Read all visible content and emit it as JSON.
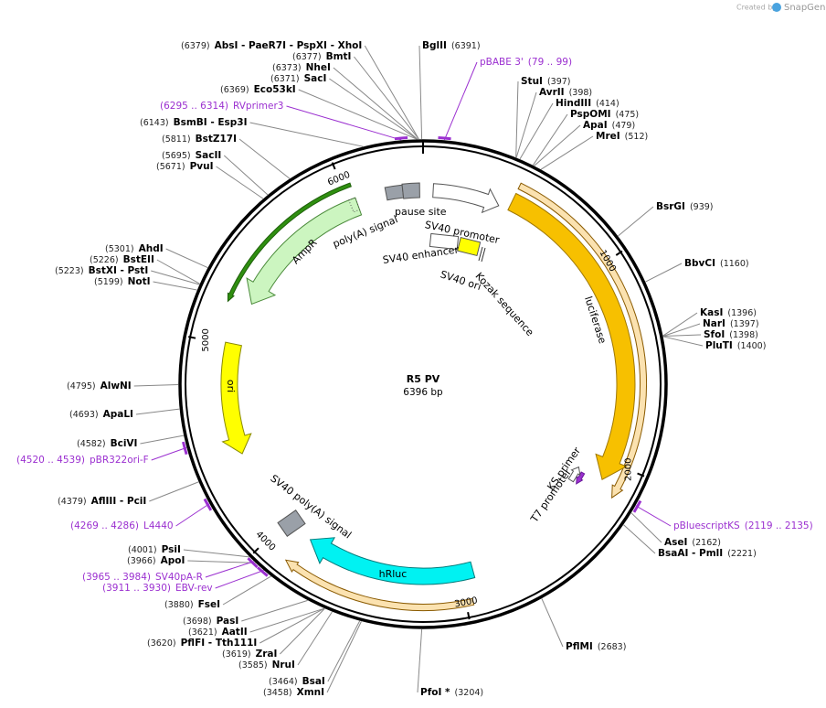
{
  "header": {
    "created_by": "Created by",
    "brand": "SnapGene"
  },
  "plasmid": {
    "name": "R5 PV",
    "size": "6396 bp",
    "ticks": [
      1000,
      2000,
      3000,
      4000,
      5000,
      6000
    ]
  },
  "enzymes": [
    {
      "position": "(6379)",
      "label": "AbsI  - PaeR7I  - PspXI  - XhoI"
    },
    {
      "position": "(6377)",
      "label": "BmtI"
    },
    {
      "position": "(6373)",
      "label": "NheI"
    },
    {
      "position": "(6371)",
      "label": "SacI"
    },
    {
      "position": "(6369)",
      "label": "Eco53kI"
    },
    {
      "position": "(6143)",
      "label": "BsmBI  - Esp3I"
    },
    {
      "position": "(5811)",
      "label": "BstZ17I"
    },
    {
      "position": "(5695)",
      "label": "SacII"
    },
    {
      "position": "(5671)",
      "label": "PvuI"
    },
    {
      "position": "(5301)",
      "label": "AhdI"
    },
    {
      "position": "(5226)",
      "label": "BstEII"
    },
    {
      "position": "(5223)",
      "label": "BstXI  - PstI"
    },
    {
      "position": "(5199)",
      "label": "NotI"
    },
    {
      "position": "(4795)",
      "label": "AlwNI"
    },
    {
      "position": "(4693)",
      "label": "ApaLI"
    },
    {
      "position": "(4582)",
      "label": "BciVI"
    },
    {
      "position": "(4379)",
      "label": "AflIII  - PciI"
    },
    {
      "position": "(4001)",
      "label": "PsiI"
    },
    {
      "position": "(3966)",
      "label": "ApoI"
    },
    {
      "position": "(3880)",
      "label": "FseI"
    },
    {
      "position": "(3698)",
      "label": "PasI"
    },
    {
      "position": "(3621)",
      "label": "AatII"
    },
    {
      "position": "(3620)",
      "label": "PflFI  - Tth111I"
    },
    {
      "position": "(3619)",
      "label": "ZraI"
    },
    {
      "position": "(3585)",
      "label": "NruI"
    },
    {
      "position": "(3464)",
      "label": "BsaI"
    },
    {
      "position": "(3458)",
      "label": "XmnI"
    },
    {
      "position": "(6391)",
      "label": "BglII"
    },
    {
      "position": "(397)",
      "label": "StuI"
    },
    {
      "position": "(398)",
      "label": "AvrII"
    },
    {
      "position": "(414)",
      "label": "HindIII"
    },
    {
      "position": "(475)",
      "label": "PspOMI"
    },
    {
      "position": "(479)",
      "label": "ApaI"
    },
    {
      "position": "(512)",
      "label": "MreI"
    },
    {
      "position": "(939)",
      "label": "BsrGI"
    },
    {
      "position": "(1160)",
      "label": "BbvCI"
    },
    {
      "position": "(1396)",
      "label": "KasI"
    },
    {
      "position": "(1397)",
      "label": "NarI"
    },
    {
      "position": "(1398)",
      "label": "SfoI"
    },
    {
      "position": "(1400)",
      "label": "PluTI"
    },
    {
      "position": "(2162)",
      "label": "AseI"
    },
    {
      "position": "(2221)",
      "label": "BsaAI  - PmlI"
    },
    {
      "position": "(2683)",
      "label": "PflMI"
    },
    {
      "position": "(3204)",
      "label": "PfoI *"
    }
  ],
  "primers": [
    {
      "range": "(6295 .. 6314)",
      "name": "RVprimer3"
    },
    {
      "range": "(4520 .. 4539)",
      "name": "pBR322ori-F"
    },
    {
      "range": "(4269 .. 4286)",
      "name": "L4440"
    },
    {
      "range": "(3965 .. 3984)",
      "name": "SV40pA-R"
    },
    {
      "range": "(3911 .. 3930)",
      "name": "EBV-rev"
    },
    {
      "range": "(79 .. 99)",
      "name": "pBABE 3'"
    },
    {
      "range": "(2119 .. 2135)",
      "name": "pBluescriptKS"
    }
  ],
  "features": [
    "pause site",
    "SV40 promoter",
    "poly(A) signal",
    "AmpR",
    "SV40 enhancer",
    "SV40 ori",
    "Kozak sequence",
    "ori",
    "luciferase",
    "KS primer",
    "T7 promoter",
    "SV40 poly(A) signal",
    "hRluc"
  ]
}
